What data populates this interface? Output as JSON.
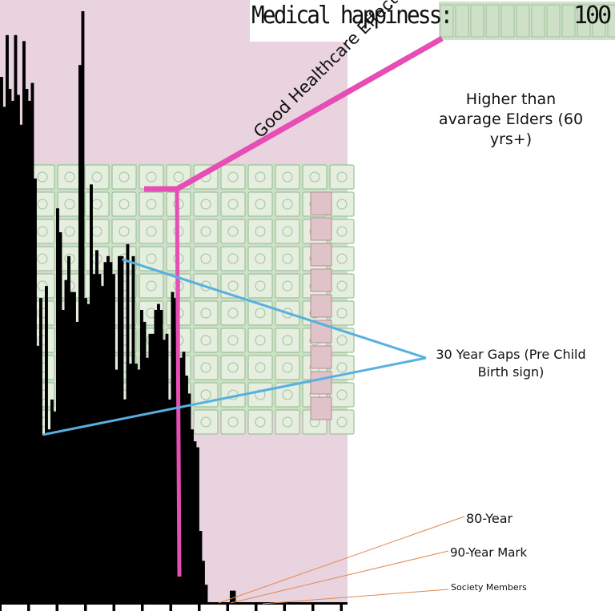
{
  "header": {
    "label": "Medical happiness:",
    "value": "100"
  },
  "annotations": {
    "healthcare": "Good Healthcare Effect",
    "elders": "Higher than avarage Elders (60 yrs+)",
    "gaps": "30 Year Gaps (Pre Child Birth sign)",
    "mark80": "80-Year",
    "mark90": "90-Year Mark",
    "members": "Society Members"
  },
  "colors": {
    "panel_bg": "#e9d3df",
    "grid_tile": "#cfe0c8",
    "grid_line": "#9cc49a",
    "tile_pink": "#dfc3c9",
    "bars": "#000000",
    "highlight": "#e64db5",
    "gap_lines": "#56b0e0",
    "callout_lines": "#e08850"
  },
  "chart_data": {
    "type": "bar",
    "title": "",
    "xlabel": "",
    "ylabel": "",
    "ylim": [
      0,
      100
    ],
    "x": [
      0,
      1,
      2,
      3,
      4,
      5,
      6,
      7,
      8,
      9,
      10,
      11,
      12,
      13,
      14,
      15,
      16,
      17,
      18,
      19,
      20,
      21,
      22,
      23,
      24,
      25,
      26,
      27,
      28,
      29,
      30,
      31,
      32,
      33,
      34,
      35,
      36,
      37,
      38,
      39,
      40,
      41,
      42,
      43,
      44,
      45,
      46,
      47,
      48,
      49,
      50,
      51,
      52,
      53,
      54,
      55,
      56,
      57,
      58,
      59,
      60,
      61,
      62,
      63,
      64,
      65,
      66,
      67,
      68,
      69,
      70,
      71,
      72,
      73,
      74,
      75,
      76,
      77,
      78,
      79,
      80,
      81,
      82,
      83,
      84,
      85,
      86,
      87,
      88,
      89,
      90,
      91,
      92,
      93,
      94,
      95,
      96,
      97,
      98,
      99,
      100,
      101,
      102,
      103,
      104,
      105,
      106,
      107,
      108,
      109,
      110
    ],
    "values": [
      89,
      84,
      96,
      87,
      85,
      96,
      86,
      81,
      95,
      87,
      85,
      88,
      72,
      44,
      52,
      29,
      54,
      30,
      35,
      33,
      67,
      63,
      50,
      55,
      59,
      53,
      53,
      48,
      91,
      100,
      52,
      51,
      71,
      56,
      60,
      56,
      54,
      58,
      59,
      58,
      56,
      40,
      59,
      59,
      35,
      61,
      41,
      59,
      41,
      40,
      50,
      48,
      42,
      46,
      46,
      50,
      51,
      50,
      45,
      46,
      35,
      53,
      52,
      55,
      42,
      43,
      39,
      36,
      30,
      28,
      27,
      13,
      8,
      4,
      0,
      0,
      0,
      1,
      1,
      0,
      0,
      0,
      3,
      3,
      0,
      0,
      0,
      0,
      0,
      0,
      0,
      0,
      0,
      0,
      0,
      0,
      0,
      0,
      0,
      0,
      0,
      0,
      0,
      0,
      0,
      0,
      0,
      0,
      0,
      0,
      0
    ],
    "annotated_x": {
      "gap_30_a": 15,
      "gap_30_b": 43,
      "elders_start": 60,
      "mark_80": 78,
      "mark_90": 88
    }
  }
}
